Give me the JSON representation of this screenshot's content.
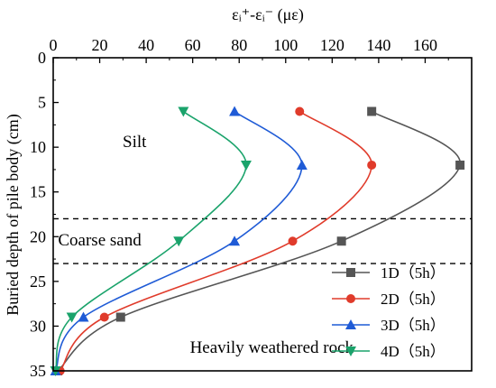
{
  "chart_data": {
    "type": "line",
    "xlabel": "εᵢ⁺-εᵢ⁻ (με)",
    "ylabel": "Buried depth of pile body (cm)",
    "xlim": [
      0,
      180
    ],
    "ylim": [
      0,
      35
    ],
    "y_inverted": true,
    "x_axis_position": "top",
    "x_ticks": [
      0,
      20,
      40,
      60,
      80,
      100,
      120,
      140,
      160
    ],
    "x_tick_labels": [
      "0",
      "20",
      "40",
      "60",
      "80",
      "100",
      "120",
      "140",
      "160"
    ],
    "y_ticks": [
      0,
      5,
      10,
      15,
      20,
      25,
      30,
      35
    ],
    "y_tick_labels": [
      "0",
      "5",
      "10",
      "15",
      "20",
      "25",
      "30",
      "35"
    ],
    "grid": false,
    "legend_placement": "bottom-right",
    "boundaries": [
      {
        "y": 18,
        "style": "dashed"
      },
      {
        "y": 23,
        "style": "dashed"
      }
    ],
    "annotations": [
      {
        "text": "Silt",
        "x": 35,
        "y": 10
      },
      {
        "text": "Coarse sand",
        "x": 20,
        "y": 21
      },
      {
        "text": "Heavily weathered rock",
        "x": 94,
        "y": 33
      }
    ],
    "series": [
      {
        "name": "1D（5h）",
        "color": "#555555",
        "marker": "square",
        "x": [
          137,
          175,
          124,
          29,
          2
        ],
        "y": [
          6,
          12,
          20.5,
          29,
          35
        ]
      },
      {
        "name": "2D（5h）",
        "color": "#e03b2b",
        "marker": "circle",
        "x": [
          106,
          137,
          103,
          22,
          3
        ],
        "y": [
          6,
          12,
          20.5,
          29,
          35
        ]
      },
      {
        "name": "3D（5h）",
        "color": "#1f5bd6",
        "marker": "triangle-up",
        "x": [
          78,
          107,
          78,
          13,
          1
        ],
        "y": [
          6,
          12,
          20.5,
          29,
          35
        ]
      },
      {
        "name": "4D（5h）",
        "color": "#1aa36b",
        "marker": "triangle-down",
        "x": [
          56,
          83,
          54,
          8,
          1
        ],
        "y": [
          6,
          12,
          20.5,
          29,
          35
        ]
      }
    ]
  }
}
